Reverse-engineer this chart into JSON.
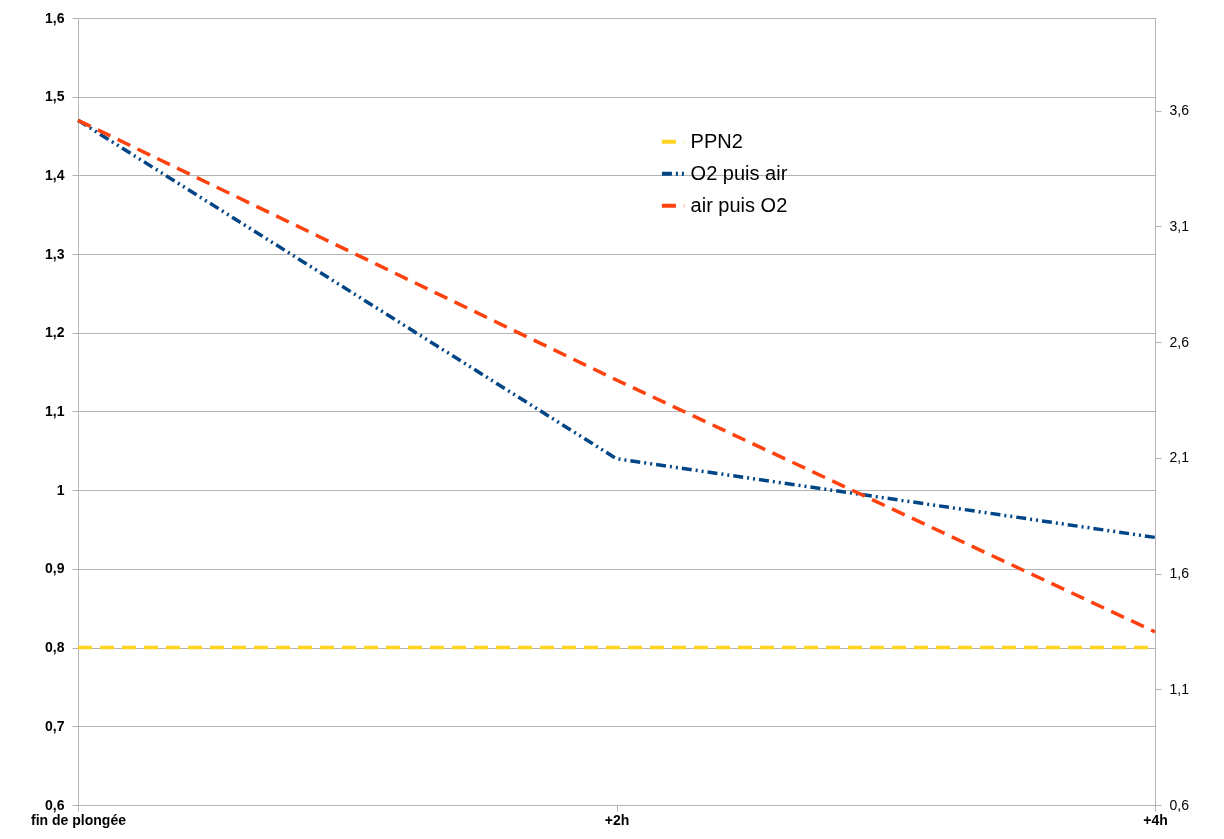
{
  "chart_data": {
    "type": "line",
    "x": [
      0,
      2,
      4
    ],
    "xlim": [
      0,
      4
    ],
    "xticks": [
      {
        "value": 0,
        "label": "fin de plongée"
      },
      {
        "value": 2,
        "label": "+2h"
      },
      {
        "value": 4,
        "label": "+4h"
      }
    ],
    "ylim": [
      0.6,
      1.6
    ],
    "yticks": [
      {
        "value": 0.6,
        "label": "0,6"
      },
      {
        "value": 0.7,
        "label": "0,7"
      },
      {
        "value": 0.8,
        "label": "0,8"
      },
      {
        "value": 0.9,
        "label": "0,9"
      },
      1,
      {
        "value": 1.1,
        "label": "1,1"
      },
      {
        "value": 1.2,
        "label": "1,2"
      },
      {
        "value": 1.3,
        "label": "1,3"
      },
      {
        "value": 1.4,
        "label": "1,4"
      },
      {
        "value": 1.5,
        "label": "1,5"
      },
      {
        "value": 1.6,
        "label": "1,6"
      }
    ],
    "y2lim": [
      0.6,
      4.0
    ],
    "y2ticks": [
      {
        "value": 0.6,
        "label": "0,6"
      },
      {
        "value": 1.1,
        "label": "1,1"
      },
      {
        "value": 1.6,
        "label": "1,6"
      },
      {
        "value": 2.1,
        "label": "2,1"
      },
      {
        "value": 2.6,
        "label": "2,6"
      },
      {
        "value": 3.1,
        "label": "3,1"
      },
      {
        "value": 3.6,
        "label": "3,6"
      }
    ],
    "grid": "y",
    "legend": "top",
    "marker": "none",
    "series": [
      {
        "name": "PPN2",
        "color": "#ffd320",
        "line_style": "dashed",
        "values": [
          0.8,
          0.8,
          0.8
        ]
      },
      {
        "name": "O2 puis air",
        "color": "#004586",
        "line_style": "dotted",
        "values": [
          1.47,
          1.04,
          0.94
        ]
      },
      {
        "name": "air puis O2",
        "color": "#ff420e",
        "line_style": "dashed",
        "values": [
          1.47,
          1.14,
          0.82
        ]
      }
    ]
  }
}
